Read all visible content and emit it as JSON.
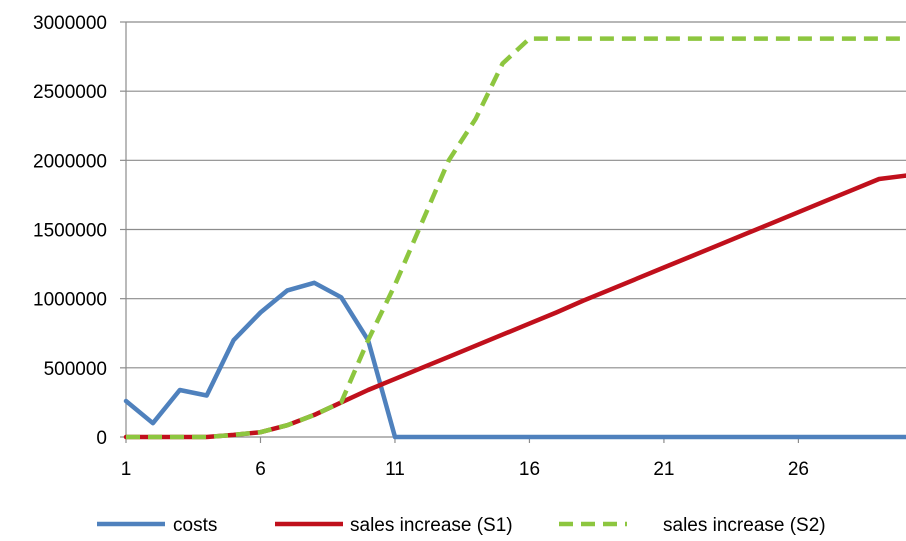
{
  "chart_data": {
    "type": "line",
    "title": "",
    "xlabel": "",
    "ylabel": "",
    "x": [
      1,
      2,
      3,
      4,
      5,
      6,
      7,
      8,
      9,
      10,
      11,
      12,
      13,
      14,
      15,
      16,
      17,
      18,
      19,
      20,
      21,
      22,
      23,
      24,
      25,
      26,
      27,
      28,
      29,
      30
    ],
    "xlim": [
      1,
      30
    ],
    "ylim": [
      0,
      3000000
    ],
    "x_ticks": [
      1,
      6,
      11,
      16,
      21,
      26
    ],
    "y_ticks": [
      0,
      500000,
      1000000,
      1500000,
      2000000,
      2500000,
      3000000
    ],
    "x_tick_labels": [
      "1",
      "6",
      "11",
      "16",
      "21",
      "26"
    ],
    "y_tick_labels": [
      "0",
      "500000",
      "1000000",
      "1500000",
      "2000000",
      "2500000",
      "3000000"
    ],
    "grid": "horizontal",
    "legend_position": "bottom",
    "series": [
      {
        "name": "costs",
        "color": "#4f81bd",
        "style": "solid",
        "values": [
          260000,
          100000,
          340000,
          300000,
          700000,
          900000,
          1060000,
          1115000,
          1010000,
          700000,
          0,
          0,
          0,
          0,
          0,
          0,
          0,
          0,
          0,
          0,
          0,
          0,
          0,
          0,
          0,
          0,
          0,
          0,
          0,
          0
        ]
      },
      {
        "name": "sales increase (S1)",
        "color": "#c0101c",
        "style": "solid",
        "values": [
          0,
          0,
          0,
          0,
          15000,
          35000,
          85000,
          160000,
          250000,
          340000,
          420000,
          500000,
          580000,
          660000,
          740000,
          820000,
          900000,
          985000,
          1065000,
          1145000,
          1225000,
          1305000,
          1385000,
          1465000,
          1545000,
          1625000,
          1705000,
          1785000,
          1865000,
          1890000
        ]
      },
      {
        "name": "sales increase (S2)",
        "color": "#8dc63f",
        "style": "dashed",
        "values": [
          0,
          0,
          0,
          0,
          15000,
          35000,
          85000,
          160000,
          250000,
          700000,
          1100000,
          1550000,
          2000000,
          2300000,
          2700000,
          2880000,
          2880000,
          2880000,
          2880000,
          2880000,
          2880000,
          2880000,
          2880000,
          2880000,
          2880000,
          2880000,
          2880000,
          2880000,
          2880000,
          2880000
        ]
      }
    ]
  }
}
